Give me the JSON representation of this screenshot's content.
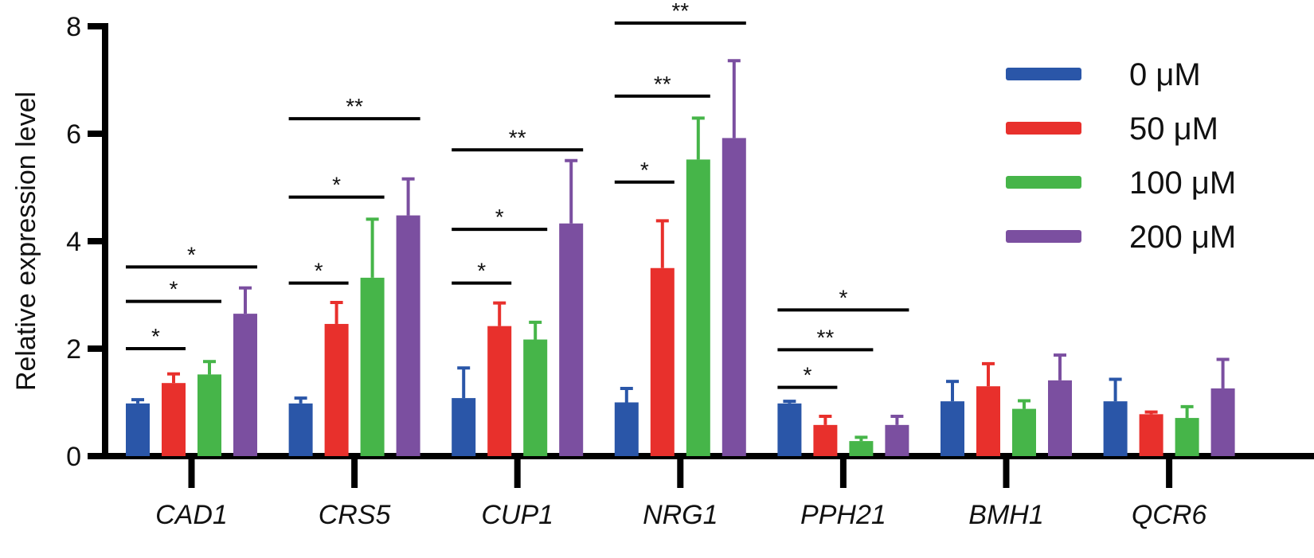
{
  "chart_data": {
    "type": "bar",
    "title": "",
    "xlabel": "",
    "ylabel": "Relative expression level",
    "ylim": [
      0,
      8
    ],
    "yticks": [
      0,
      2,
      4,
      6,
      8
    ],
    "categories": [
      "CAD1",
      "CRS5",
      "CUP1",
      "NRG1",
      "PPH21",
      "BMH1",
      "QCR6"
    ],
    "series": [
      {
        "name": "0 μM",
        "color": "#2a56a8",
        "values": [
          0.98,
          0.98,
          1.08,
          1.0,
          0.98,
          1.02,
          1.02
        ],
        "errors": [
          0.07,
          0.1,
          0.56,
          0.26,
          0.04,
          0.37,
          0.41
        ]
      },
      {
        "name": "50 μM",
        "color": "#e8302c",
        "values": [
          1.36,
          2.46,
          2.42,
          3.5,
          0.58,
          1.3,
          0.78
        ],
        "errors": [
          0.17,
          0.4,
          0.43,
          0.88,
          0.16,
          0.42,
          0.04
        ]
      },
      {
        "name": "100 μM",
        "color": "#46b549",
        "values": [
          1.52,
          3.32,
          2.17,
          5.52,
          0.28,
          0.88,
          0.71
        ],
        "errors": [
          0.24,
          1.09,
          0.32,
          0.77,
          0.07,
          0.15,
          0.21
        ]
      },
      {
        "name": "200 μM",
        "color": "#7b4fa0",
        "values": [
          2.65,
          4.48,
          4.33,
          5.92,
          0.58,
          1.41,
          1.26
        ],
        "errors": [
          0.48,
          0.68,
          1.17,
          1.44,
          0.16,
          0.47,
          0.54
        ]
      }
    ],
    "significance": [
      {
        "category": "CAD1",
        "from": 0,
        "to": 1,
        "level": 2.0,
        "label": "*"
      },
      {
        "category": "CAD1",
        "from": 0,
        "to": 2,
        "level": 2.88,
        "label": "*"
      },
      {
        "category": "CAD1",
        "from": 0,
        "to": 3,
        "level": 3.52,
        "label": "*"
      },
      {
        "category": "CRS5",
        "from": 0,
        "to": 1,
        "level": 3.22,
        "label": "*"
      },
      {
        "category": "CRS5",
        "from": 0,
        "to": 2,
        "level": 4.82,
        "label": "*"
      },
      {
        "category": "CRS5",
        "from": 0,
        "to": 3,
        "level": 6.28,
        "label": "**"
      },
      {
        "category": "CUP1",
        "from": 0,
        "to": 1,
        "level": 3.22,
        "label": "*"
      },
      {
        "category": "CUP1",
        "from": 0,
        "to": 2,
        "level": 4.22,
        "label": "*"
      },
      {
        "category": "CUP1",
        "from": 0,
        "to": 3,
        "level": 5.7,
        "label": "**"
      },
      {
        "category": "NRG1",
        "from": 0,
        "to": 1,
        "level": 5.1,
        "label": "*"
      },
      {
        "category": "NRG1",
        "from": 0,
        "to": 2,
        "level": 6.7,
        "label": "**"
      },
      {
        "category": "NRG1",
        "from": 0,
        "to": 3,
        "level": 8.06,
        "label": "**"
      },
      {
        "category": "PPH21",
        "from": 0,
        "to": 1,
        "level": 1.28,
        "label": "*"
      },
      {
        "category": "PPH21",
        "from": 0,
        "to": 2,
        "level": 1.98,
        "label": "**"
      },
      {
        "category": "PPH21",
        "from": 0,
        "to": 3,
        "level": 2.72,
        "label": "*"
      }
    ],
    "legend": {
      "position": "top-right"
    },
    "grid": false
  }
}
